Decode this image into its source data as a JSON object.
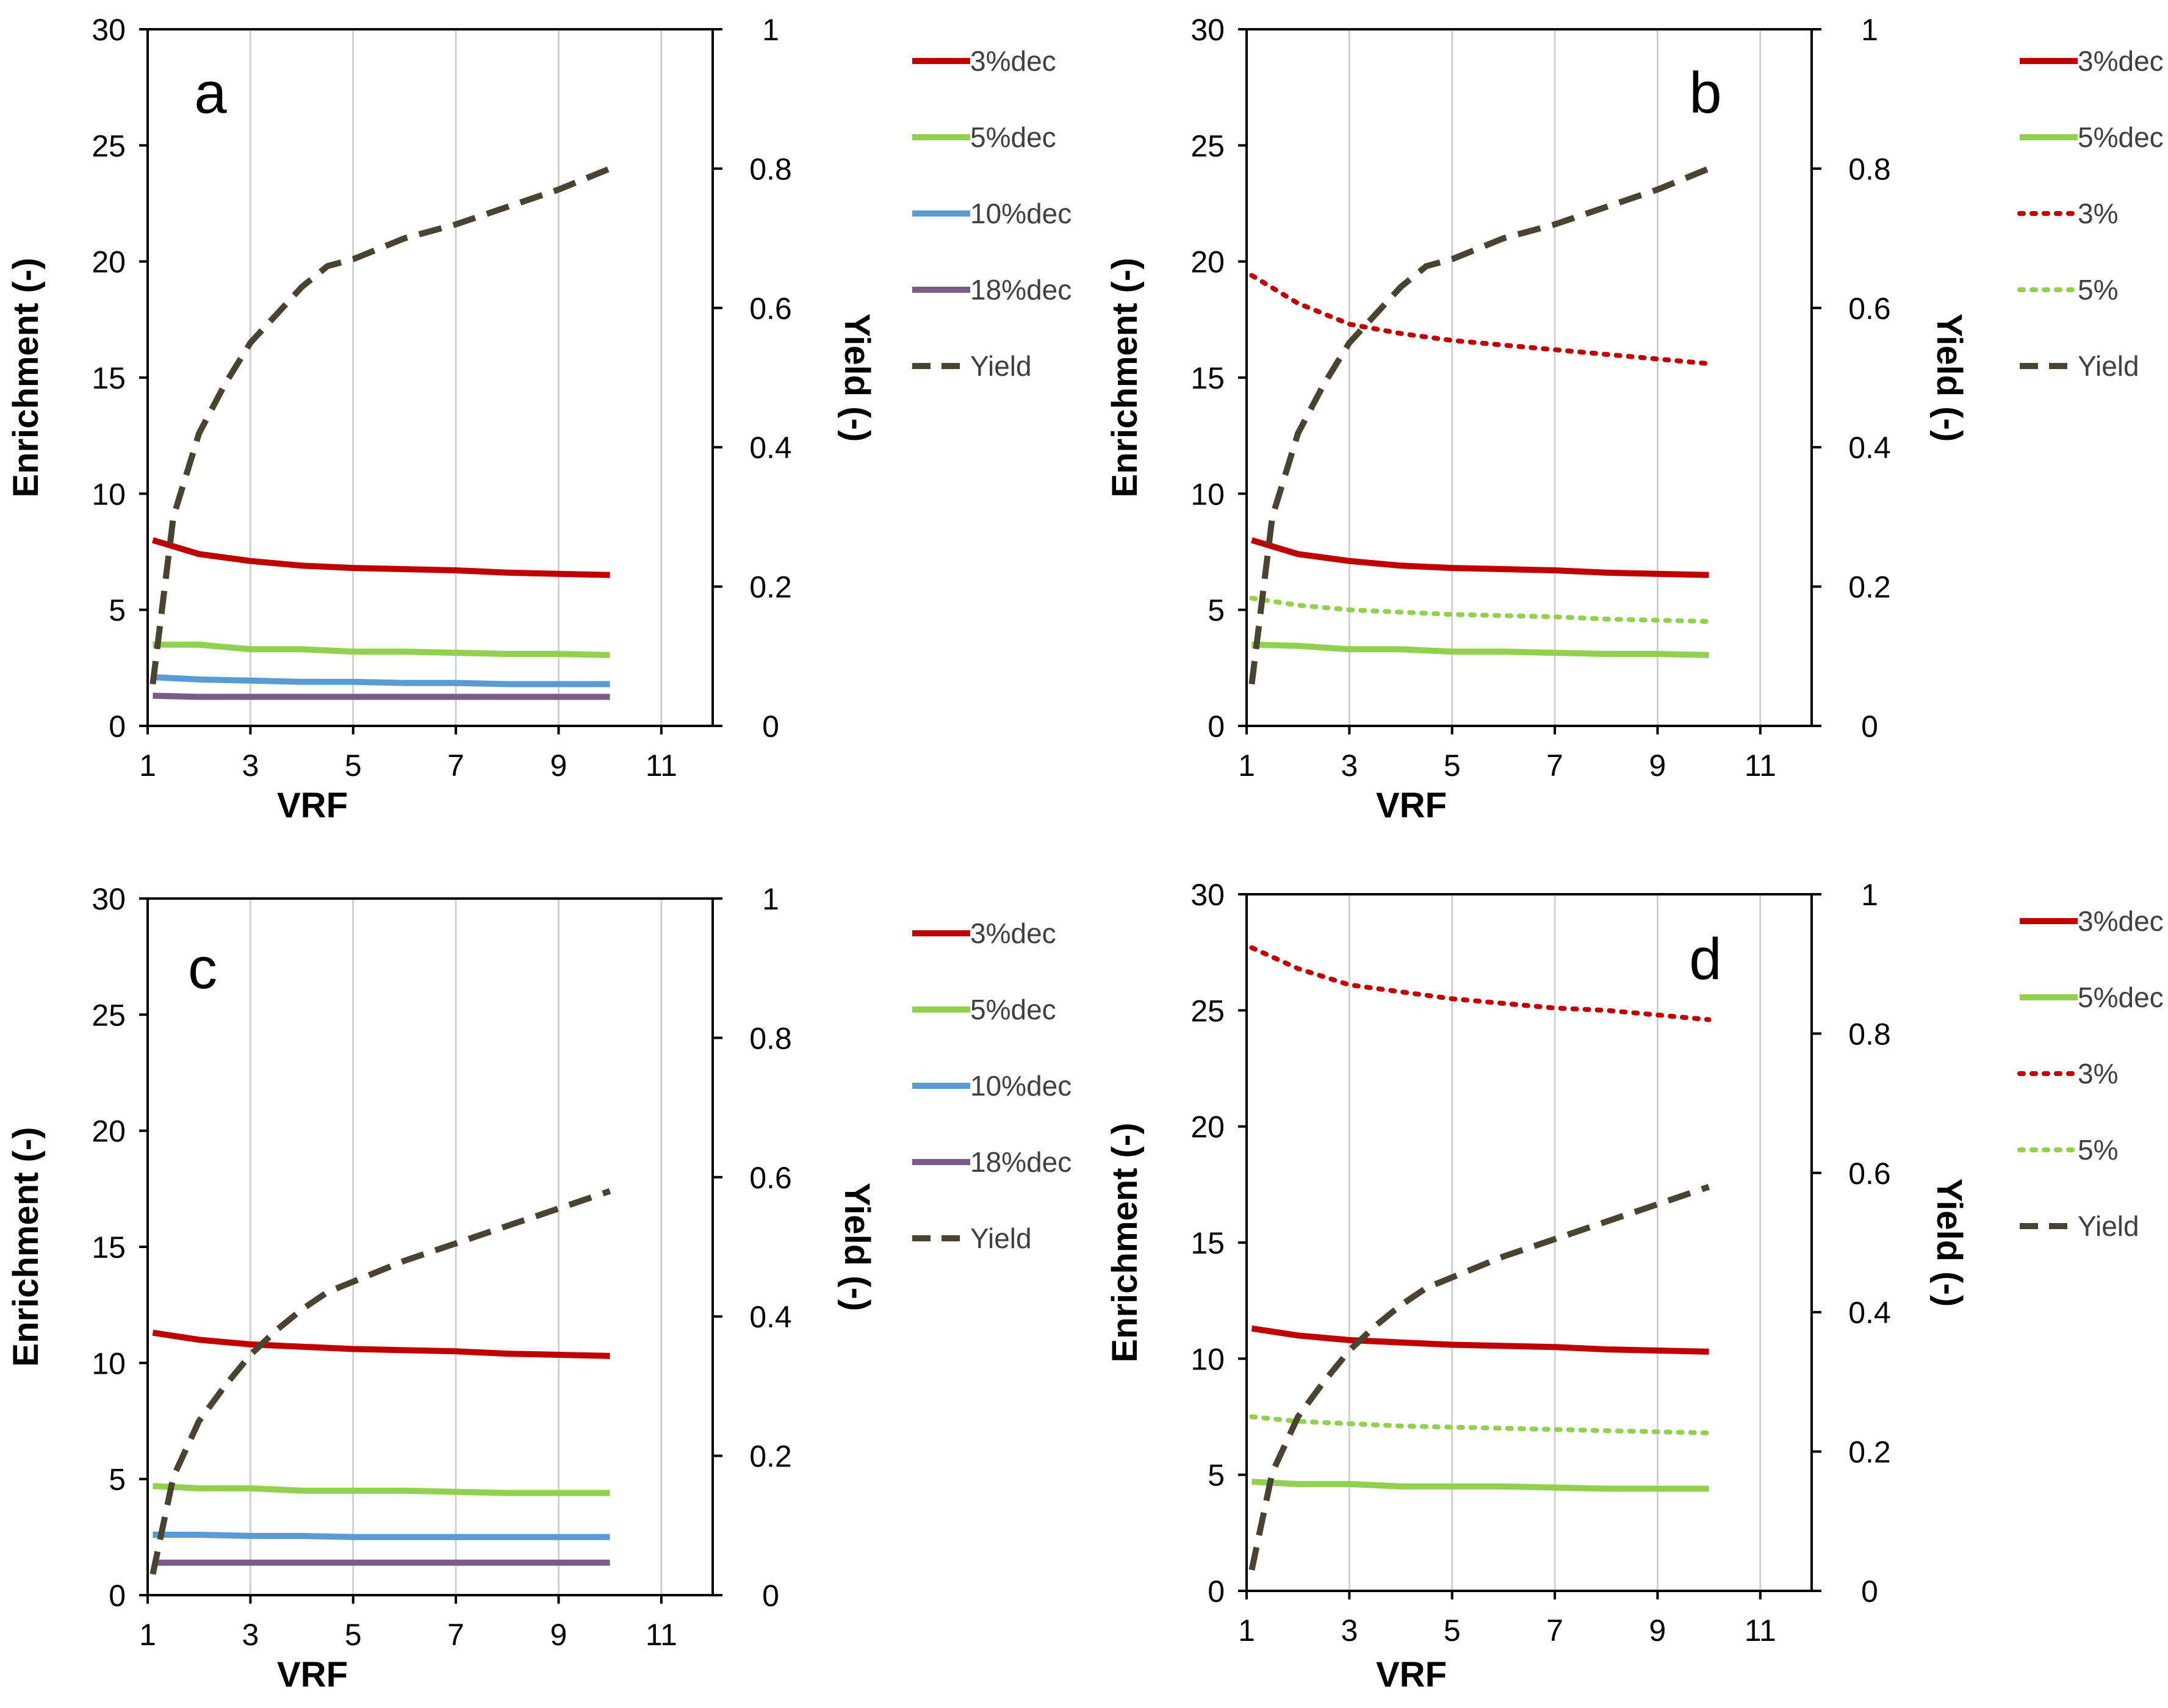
{
  "chart_data": [
    {
      "type": "line",
      "panel_label": "a",
      "xlabel": "VRF",
      "ylabel": "Enrichment (-)",
      "y2label": "Yield (-)",
      "xlim": [
        1,
        12
      ],
      "ylim": [
        0,
        30
      ],
      "y2lim": [
        0,
        1
      ],
      "xticks": [
        "1",
        "3",
        "5",
        "7",
        "9",
        "11"
      ],
      "yticks": [
        "0",
        "5",
        "10",
        "15",
        "20",
        "25",
        "30"
      ],
      "y2ticks": [
        "0",
        "0.2",
        "0.4",
        "0.6",
        "0.8",
        "1"
      ],
      "grid": "vertical",
      "legend_position": "right",
      "series": [
        {
          "name": "3%dec",
          "axis": "left",
          "color": "#c00000",
          "style": "solid",
          "x": [
            1.1,
            2,
            3,
            4,
            5,
            6,
            7,
            8,
            9,
            10
          ],
          "y": [
            8.0,
            7.4,
            7.1,
            6.9,
            6.8,
            6.75,
            6.7,
            6.6,
            6.55,
            6.5
          ]
        },
        {
          "name": "5%dec",
          "axis": "left",
          "color": "#92d050",
          "style": "solid",
          "x": [
            1.1,
            2,
            3,
            4,
            5,
            6,
            7,
            8,
            9,
            10
          ],
          "y": [
            3.5,
            3.5,
            3.3,
            3.3,
            3.2,
            3.2,
            3.15,
            3.1,
            3.1,
            3.05
          ]
        },
        {
          "name": "10%dec",
          "axis": "left",
          "color": "#5b9bd5",
          "style": "solid",
          "x": [
            1.1,
            2,
            3,
            4,
            5,
            6,
            7,
            8,
            9,
            10
          ],
          "y": [
            2.1,
            2.0,
            1.95,
            1.9,
            1.9,
            1.85,
            1.85,
            1.8,
            1.8,
            1.8
          ]
        },
        {
          "name": "18%dec",
          "axis": "left",
          "color": "#7a5c87",
          "style": "solid",
          "x": [
            1.1,
            2,
            3,
            4,
            5,
            6,
            7,
            8,
            9,
            10
          ],
          "y": [
            1.3,
            1.25,
            1.25,
            1.25,
            1.25,
            1.25,
            1.25,
            1.25,
            1.25,
            1.25
          ]
        },
        {
          "name": "Yield",
          "axis": "right",
          "color": "#4a4332",
          "style": "dashed",
          "x": [
            1.1,
            1.5,
            2,
            2.5,
            3,
            3.5,
            4,
            4.5,
            5,
            6,
            7,
            8,
            9,
            10
          ],
          "y": [
            0.06,
            0.3,
            0.42,
            0.49,
            0.55,
            0.59,
            0.63,
            0.66,
            0.67,
            0.7,
            0.72,
            0.745,
            0.77,
            0.8
          ]
        }
      ]
    },
    {
      "type": "line",
      "panel_label": "b",
      "xlabel": "VRF",
      "ylabel": "Enrichment (-)",
      "y2label": "Yield (-)",
      "xlim": [
        1,
        12
      ],
      "ylim": [
        0,
        30
      ],
      "y2lim": [
        0,
        1
      ],
      "xticks": [
        "1",
        "3",
        "5",
        "7",
        "9",
        "11"
      ],
      "yticks": [
        "0",
        "5",
        "10",
        "15",
        "20",
        "25",
        "30"
      ],
      "y2ticks": [
        "0",
        "0.2",
        "0.4",
        "0.6",
        "0.8",
        "1"
      ],
      "grid": "vertical",
      "legend_position": "right",
      "series": [
        {
          "name": "3%dec",
          "axis": "left",
          "color": "#c00000",
          "style": "solid",
          "x": [
            1.1,
            2,
            3,
            4,
            5,
            6,
            7,
            8,
            9,
            10
          ],
          "y": [
            8.0,
            7.4,
            7.1,
            6.9,
            6.8,
            6.75,
            6.7,
            6.6,
            6.55,
            6.5
          ]
        },
        {
          "name": "5%dec",
          "axis": "left",
          "color": "#92d050",
          "style": "solid",
          "x": [
            1.1,
            2,
            3,
            4,
            5,
            6,
            7,
            8,
            9,
            10
          ],
          "y": [
            3.5,
            3.45,
            3.3,
            3.3,
            3.2,
            3.2,
            3.15,
            3.1,
            3.1,
            3.05
          ]
        },
        {
          "name": "3%",
          "axis": "left",
          "color": "#c00000",
          "style": "dotted",
          "x": [
            1.1,
            2,
            3,
            4,
            5,
            6,
            7,
            8,
            9,
            10
          ],
          "y": [
            19.4,
            18.2,
            17.3,
            16.9,
            16.6,
            16.4,
            16.2,
            16.0,
            15.8,
            15.6
          ]
        },
        {
          "name": "5%",
          "axis": "left",
          "color": "#92d050",
          "style": "dotted",
          "x": [
            1.1,
            2,
            3,
            4,
            5,
            6,
            7,
            8,
            9,
            10
          ],
          "y": [
            5.5,
            5.2,
            5.0,
            4.9,
            4.8,
            4.75,
            4.7,
            4.6,
            4.55,
            4.5
          ]
        },
        {
          "name": "Yield",
          "axis": "right",
          "color": "#4a4332",
          "style": "dashed",
          "x": [
            1.1,
            1.5,
            2,
            2.5,
            3,
            3.5,
            4,
            4.5,
            5,
            6,
            7,
            8,
            9,
            10
          ],
          "y": [
            0.06,
            0.3,
            0.42,
            0.49,
            0.55,
            0.59,
            0.63,
            0.66,
            0.67,
            0.7,
            0.72,
            0.745,
            0.77,
            0.8
          ]
        }
      ]
    },
    {
      "type": "line",
      "panel_label": "c",
      "xlabel": "VRF",
      "ylabel": "Enrichment (-)",
      "y2label": "Yield (-)",
      "xlim": [
        1,
        12
      ],
      "ylim": [
        0,
        30
      ],
      "y2lim": [
        0,
        1
      ],
      "xticks": [
        "1",
        "3",
        "5",
        "7",
        "9",
        "11"
      ],
      "yticks": [
        "0",
        "5",
        "10",
        "15",
        "20",
        "25",
        "30"
      ],
      "y2ticks": [
        "0",
        "0.2",
        "0.4",
        "0.6",
        "0.8",
        "1"
      ],
      "grid": "vertical",
      "legend_position": "right",
      "series": [
        {
          "name": "3%dec",
          "axis": "left",
          "color": "#c00000",
          "style": "solid",
          "x": [
            1.1,
            2,
            3,
            4,
            5,
            6,
            7,
            8,
            9,
            10
          ],
          "y": [
            11.3,
            11.0,
            10.8,
            10.7,
            10.6,
            10.55,
            10.5,
            10.4,
            10.35,
            10.3
          ]
        },
        {
          "name": "5%dec",
          "axis": "left",
          "color": "#92d050",
          "style": "solid",
          "x": [
            1.1,
            2,
            3,
            4,
            5,
            6,
            7,
            8,
            9,
            10
          ],
          "y": [
            4.7,
            4.6,
            4.6,
            4.5,
            4.5,
            4.5,
            4.45,
            4.4,
            4.4,
            4.4
          ]
        },
        {
          "name": "10%dec",
          "axis": "left",
          "color": "#5b9bd5",
          "style": "solid",
          "x": [
            1.1,
            2,
            3,
            4,
            5,
            6,
            7,
            8,
            9,
            10
          ],
          "y": [
            2.6,
            2.6,
            2.55,
            2.55,
            2.5,
            2.5,
            2.5,
            2.5,
            2.5,
            2.5
          ]
        },
        {
          "name": "18%dec",
          "axis": "left",
          "color": "#7a5c87",
          "style": "solid",
          "x": [
            1.1,
            2,
            3,
            4,
            5,
            6,
            7,
            8,
            9,
            10
          ],
          "y": [
            1.4,
            1.4,
            1.4,
            1.4,
            1.4,
            1.4,
            1.4,
            1.4,
            1.4,
            1.4
          ]
        },
        {
          "name": "Yield",
          "axis": "right",
          "color": "#4a4332",
          "style": "dashed",
          "x": [
            1.1,
            1.5,
            2,
            2.5,
            3,
            3.5,
            4,
            4.5,
            5,
            6,
            7,
            8,
            9,
            10
          ],
          "y": [
            0.03,
            0.17,
            0.25,
            0.3,
            0.345,
            0.38,
            0.41,
            0.435,
            0.45,
            0.48,
            0.505,
            0.53,
            0.555,
            0.58
          ]
        }
      ]
    },
    {
      "type": "line",
      "panel_label": "d",
      "xlabel": "VRF",
      "ylabel": "Enrichment (-)",
      "y2label": "Yield (-)",
      "xlim": [
        1,
        12
      ],
      "ylim": [
        0,
        30
      ],
      "y2lim": [
        0,
        1
      ],
      "xticks": [
        "1",
        "3",
        "5",
        "7",
        "9",
        "11"
      ],
      "yticks": [
        "0",
        "5",
        "10",
        "15",
        "20",
        "25",
        "30"
      ],
      "y2ticks": [
        "0",
        "0.2",
        "0.4",
        "0.6",
        "0.8",
        "1"
      ],
      "grid": "vertical",
      "legend_position": "right",
      "series": [
        {
          "name": "3%dec",
          "axis": "left",
          "color": "#c00000",
          "style": "solid",
          "x": [
            1.1,
            2,
            3,
            4,
            5,
            6,
            7,
            8,
            9,
            10
          ],
          "y": [
            11.3,
            11.0,
            10.8,
            10.7,
            10.6,
            10.55,
            10.5,
            10.4,
            10.35,
            10.3
          ]
        },
        {
          "name": "5%dec",
          "axis": "left",
          "color": "#92d050",
          "style": "solid",
          "x": [
            1.1,
            2,
            3,
            4,
            5,
            6,
            7,
            8,
            9,
            10
          ],
          "y": [
            4.7,
            4.6,
            4.6,
            4.5,
            4.5,
            4.5,
            4.45,
            4.4,
            4.4,
            4.4
          ]
        },
        {
          "name": "3%",
          "axis": "left",
          "color": "#c00000",
          "style": "dotted",
          "x": [
            1.1,
            2,
            3,
            4,
            5,
            6,
            7,
            8,
            9,
            10
          ],
          "y": [
            27.7,
            26.8,
            26.1,
            25.8,
            25.5,
            25.3,
            25.1,
            25.0,
            24.8,
            24.6
          ]
        },
        {
          "name": "5%",
          "axis": "left",
          "color": "#92d050",
          "style": "dotted",
          "x": [
            1.1,
            2,
            3,
            4,
            5,
            6,
            7,
            8,
            9,
            10
          ],
          "y": [
            7.5,
            7.3,
            7.2,
            7.1,
            7.05,
            7.0,
            6.95,
            6.9,
            6.85,
            6.8
          ]
        },
        {
          "name": "Yield",
          "axis": "right",
          "color": "#4a4332",
          "style": "dashed",
          "x": [
            1.1,
            1.5,
            2,
            2.5,
            3,
            3.5,
            4,
            4.5,
            5,
            6,
            7,
            8,
            9,
            10
          ],
          "y": [
            0.03,
            0.17,
            0.25,
            0.3,
            0.345,
            0.38,
            0.41,
            0.435,
            0.45,
            0.48,
            0.505,
            0.53,
            0.555,
            0.58
          ]
        }
      ]
    }
  ]
}
